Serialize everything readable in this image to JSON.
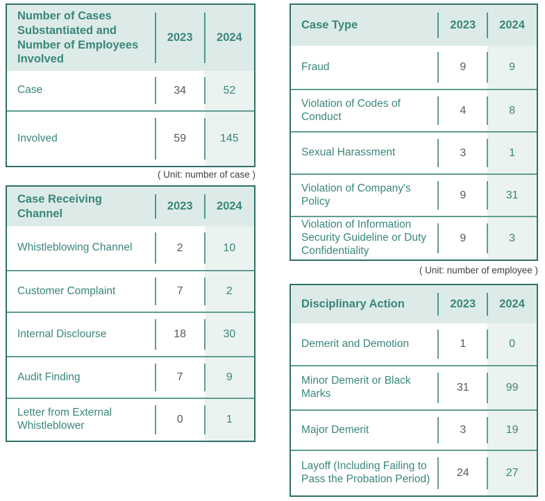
{
  "colors": {
    "teal_text": "#3a867b",
    "outer_border": "#2e6f66",
    "separator_line": "#5f9c92",
    "header_background": "#dcebe7",
    "col_2024_background": "#ebf3f0",
    "number_2023_gray": "#56585a",
    "caption_gray": "#404040"
  },
  "tables": {
    "cases": {
      "title": "Number of Cases Substantiated and Number of Employees Involved",
      "col_2023": "2023",
      "col_2024": "2024",
      "rows": [
        {
          "label": "Case",
          "v2023": "34",
          "v2024": "52"
        },
        {
          "label": "Involved",
          "v2023": "59",
          "v2024": "145"
        }
      ],
      "unit_note": "( Unit: number of case )"
    },
    "channel": {
      "title": "Case Receiving Channel",
      "col_2023": "2023",
      "col_2024": "2024",
      "rows": [
        {
          "label": "Whistleblowing Channel",
          "v2023": "2",
          "v2024": "10"
        },
        {
          "label": "Customer Complaint",
          "v2023": "7",
          "v2024": "2"
        },
        {
          "label": "Internal Disclourse",
          "v2023": "18",
          "v2024": "30"
        },
        {
          "label": "Audit Finding",
          "v2023": "7",
          "v2024": "9"
        },
        {
          "label": "Letter from External Whistleblower",
          "v2023": "0",
          "v2024": "1"
        }
      ]
    },
    "case_type": {
      "title": "Case Type",
      "col_2023": "2023",
      "col_2024": "2024",
      "rows": [
        {
          "label": "Fraud",
          "v2023": "9",
          "v2024": "9"
        },
        {
          "label": "Violation of Codes of Conduct",
          "v2023": "4",
          "v2024": "8"
        },
        {
          "label": "Sexual Harassment",
          "v2023": "3",
          "v2024": "1"
        },
        {
          "label": "Violation of Company's Policy",
          "v2023": "9",
          "v2024": "31"
        },
        {
          "label": "Violation of Information Security Guideline or Duty Confidentiality",
          "v2023": "9",
          "v2024": "3"
        }
      ],
      "unit_note": "( Unit: number of employee )"
    },
    "disciplinary": {
      "title": "Disciplinary Action",
      "col_2023": "2023",
      "col_2024": "2024",
      "rows": [
        {
          "label": "Demerit and Demotion",
          "v2023": "1",
          "v2024": "0"
        },
        {
          "label": "Minor Demerit or Black Marks",
          "v2023": "31",
          "v2024": "99"
        },
        {
          "label": "Major Demerit",
          "v2023": "3",
          "v2024": "19"
        },
        {
          "label": "Layoff (Including Failing to Pass the Probation Period)",
          "v2023": "24",
          "v2024": "27"
        }
      ]
    }
  }
}
